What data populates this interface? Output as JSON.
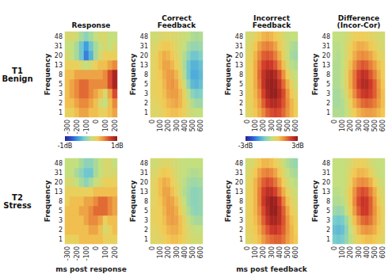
{
  "chart_data": [
    {
      "type": "heatmap",
      "title": "Response",
      "row_label": "T1\nBenign",
      "ylabel": "Frequency",
      "x": [
        -300,
        null,
        -200,
        null,
        -100,
        null,
        0,
        null,
        100,
        null,
        200
      ],
      "y": [
        1,
        2,
        3,
        5,
        8,
        13,
        20,
        31,
        48
      ],
      "color_range": [
        -1,
        1
      ],
      "colorbar_ticks": [
        {
          "value": -1,
          "label": "-1dB"
        },
        {
          "value": 1,
          "label": "1dB"
        }
      ],
      "values": [
        [
          0.2,
          0.2,
          0.3,
          0.4,
          0.4,
          0.3,
          0.3,
          0.2,
          0.2,
          0.3,
          0.4
        ],
        [
          0.3,
          0.3,
          0.4,
          0.5,
          0.5,
          0.4,
          0.3,
          0.1,
          0,
          0.3,
          0.5
        ],
        [
          0.3,
          0.4,
          0.5,
          0.6,
          0.6,
          0.5,
          0.4,
          0.3,
          0.1,
          0.4,
          0.7
        ],
        [
          0.3,
          0.4,
          0.5,
          0.6,
          0.6,
          0.5,
          0.5,
          0.5,
          0.5,
          0.7,
          0.9
        ],
        [
          0.3,
          0.3,
          0.4,
          0.4,
          0.4,
          0.4,
          0.4,
          0.4,
          0.5,
          0.7,
          0.9
        ],
        [
          0.2,
          0.2,
          0.2,
          0.1,
          0,
          0.1,
          0.2,
          0.3,
          0.3,
          0.4,
          0.5
        ],
        [
          0.1,
          0,
          -0.1,
          -0.3,
          -0.6,
          -0.4,
          -0.1,
          0.1,
          0.2,
          0.2,
          0.2
        ],
        [
          0,
          0,
          -0.1,
          -0.3,
          -0.5,
          -0.3,
          -0.1,
          0,
          0.1,
          0,
          0.1
        ],
        [
          0.1,
          0.1,
          0.05,
          -0.1,
          -0.2,
          -0.1,
          0,
          0.1,
          0.1,
          0,
          0
        ]
      ]
    },
    {
      "type": "heatmap",
      "title": "Correct\nFeedback",
      "ylabel": "Frequency",
      "x": [
        0,
        null,
        100,
        null,
        200,
        null,
        300,
        null,
        400,
        null,
        500,
        null,
        600
      ],
      "y": [
        1,
        2,
        3,
        5,
        8,
        13,
        20,
        31,
        48
      ],
      "color_range": [
        -3,
        3
      ],
      "values": [
        [
          0.4,
          0.4,
          0.5,
          0.6,
          0.8,
          0.9,
          0.9,
          0.8,
          0.6,
          0.3,
          0.1,
          0,
          0
        ],
        [
          0.4,
          0.5,
          0.6,
          0.8,
          1.0,
          1.1,
          1.2,
          1.0,
          0.6,
          0.2,
          -0.2,
          -0.4,
          -0.4
        ],
        [
          0.5,
          0.6,
          0.7,
          0.9,
          1.2,
          1.3,
          1.3,
          1.0,
          0.5,
          -0.1,
          -0.6,
          -0.8,
          -0.7
        ],
        [
          0.5,
          0.6,
          0.7,
          1.0,
          1.3,
          1.4,
          1.2,
          0.8,
          0.1,
          -0.6,
          -1.1,
          -1.2,
          -1.0
        ],
        [
          0.4,
          0.6,
          0.8,
          1.1,
          1.3,
          1.3,
          1.0,
          0.5,
          -0.2,
          -0.9,
          -1.3,
          -1.3,
          -1.1
        ],
        [
          0.4,
          0.6,
          0.9,
          1.2,
          1.2,
          1.0,
          0.7,
          0.3,
          -0.3,
          -0.9,
          -1.2,
          -1.2,
          -1.0
        ],
        [
          0.4,
          0.6,
          0.9,
          1.1,
          1.0,
          0.8,
          0.5,
          0.2,
          -0.2,
          -0.6,
          -0.9,
          -0.9,
          -0.7
        ],
        [
          0.3,
          0.4,
          0.6,
          0.8,
          0.8,
          0.6,
          0.4,
          0.2,
          0,
          -0.3,
          -0.5,
          -0.5,
          -0.4
        ],
        [
          0.2,
          0.2,
          0.3,
          0.4,
          0.4,
          0.4,
          0.3,
          0.2,
          0.1,
          0,
          -0.2,
          -0.3,
          -0.2
        ]
      ]
    },
    {
      "type": "heatmap",
      "title": "Incorrect\nFeedback",
      "ylabel": "Frequency",
      "x": [
        0,
        null,
        100,
        null,
        200,
        null,
        300,
        null,
        400,
        null,
        500,
        null,
        600
      ],
      "y": [
        1,
        2,
        3,
        5,
        8,
        13,
        20,
        31,
        48
      ],
      "color_range": [
        -3,
        3
      ],
      "colorbar_ticks": [
        {
          "value": -3,
          "label": "-3dB"
        },
        {
          "value": 3,
          "label": "3dB"
        }
      ],
      "values": [
        [
          0.4,
          0.5,
          0.8,
          1.1,
          1.5,
          1.9,
          2.1,
          2.2,
          2.1,
          1.8,
          1.4,
          1.0,
          0.7
        ],
        [
          0.5,
          0.6,
          0.9,
          1.3,
          1.9,
          2.4,
          2.6,
          2.6,
          2.4,
          2.0,
          1.5,
          1.0,
          0.6
        ],
        [
          0.5,
          0.7,
          1.0,
          1.5,
          2.2,
          2.7,
          2.9,
          2.9,
          2.6,
          2.1,
          1.4,
          0.8,
          0.4
        ],
        [
          0.5,
          0.7,
          1.1,
          1.7,
          2.4,
          2.8,
          2.9,
          2.8,
          2.4,
          1.8,
          1.1,
          0.5,
          0.2
        ],
        [
          0.5,
          0.7,
          1.1,
          1.8,
          2.4,
          2.7,
          2.8,
          2.6,
          2.1,
          1.4,
          0.7,
          0.2,
          0
        ],
        [
          0.5,
          0.7,
          1.1,
          1.7,
          2.2,
          2.4,
          2.3,
          2.0,
          1.5,
          0.9,
          0.3,
          -0.1,
          -0.2
        ],
        [
          0.4,
          0.6,
          1.0,
          1.5,
          1.9,
          2.0,
          1.9,
          1.6,
          1.1,
          0.6,
          0.1,
          -0.3,
          -0.4
        ],
        [
          0.3,
          0.5,
          0.8,
          1.2,
          1.5,
          1.6,
          1.5,
          1.2,
          0.8,
          0.4,
          0.1,
          -0.2,
          -0.3
        ],
        [
          0.2,
          0.3,
          0.5,
          0.8,
          1.0,
          1.1,
          1.0,
          0.8,
          0.6,
          0.3,
          0.1,
          0,
          0
        ]
      ]
    },
    {
      "type": "heatmap",
      "title": "Difference\n(Incor-Cor)",
      "ylabel": "Frequency",
      "x": [
        0,
        null,
        100,
        null,
        200,
        null,
        300,
        null,
        400,
        null,
        500,
        null,
        600
      ],
      "y": [
        1,
        2,
        3,
        5,
        8,
        13,
        20,
        31,
        48
      ],
      "color_range": [
        -3,
        3
      ],
      "values": [
        [
          -0.2,
          -0.2,
          -0.2,
          0,
          0.4,
          0.7,
          1.0,
          1.2,
          1.3,
          1.3,
          1.2,
          1.0,
          0.8
        ],
        [
          -0.3,
          -0.3,
          -0.2,
          0.1,
          0.6,
          1.1,
          1.5,
          1.8,
          1.9,
          1.8,
          1.6,
          1.3,
          0.9
        ],
        [
          -0.3,
          -0.3,
          -0.1,
          0.3,
          0.9,
          1.5,
          2.0,
          2.3,
          2.4,
          2.2,
          1.9,
          1.4,
          0.9
        ],
        [
          -0.2,
          -0.2,
          0,
          0.5,
          1.1,
          1.7,
          2.3,
          2.6,
          2.6,
          2.3,
          1.9,
          1.3,
          0.8
        ],
        [
          -0.2,
          -0.2,
          0,
          0.5,
          1.1,
          1.7,
          2.2,
          2.5,
          2.4,
          2.0,
          1.6,
          1.1,
          0.7
        ],
        [
          -0.2,
          -0.2,
          0,
          0.4,
          0.9,
          1.4,
          1.8,
          2.0,
          1.9,
          1.6,
          1.3,
          0.9,
          0.6
        ],
        [
          -0.1,
          -0.2,
          0,
          0.3,
          0.7,
          1.1,
          1.4,
          1.5,
          1.4,
          1.2,
          0.9,
          0.6,
          0.4
        ],
        [
          -0.1,
          -0.1,
          0,
          0.3,
          0.6,
          0.9,
          1.1,
          1.1,
          1.0,
          0.8,
          0.6,
          0.4,
          0.3
        ],
        [
          0,
          0,
          0,
          0.2,
          0.4,
          0.6,
          0.7,
          0.7,
          0.6,
          0.5,
          0.4,
          0.3,
          0.2
        ]
      ]
    },
    {
      "type": "heatmap",
      "row_label": "T2\nStress",
      "ylabel": "Frequency",
      "xlabel": "ms post response",
      "x": [
        -300,
        null,
        -200,
        null,
        -100,
        null,
        0,
        null,
        100,
        null,
        200
      ],
      "y": [
        1,
        2,
        3,
        5,
        8,
        13,
        20,
        31,
        48
      ],
      "color_range": [
        -1,
        1
      ],
      "values": [
        [
          0.2,
          0.2,
          0.2,
          0.3,
          0.3,
          0.3,
          0.3,
          0.3,
          0.2,
          0.2,
          0.2
        ],
        [
          0.3,
          0.3,
          0.3,
          0.3,
          0.3,
          0.4,
          0.4,
          0.3,
          0.1,
          0.2,
          0.3
        ],
        [
          0.3,
          0.3,
          0.3,
          0.3,
          0.4,
          0.5,
          0.5,
          0.4,
          0.2,
          0.3,
          0.3
        ],
        [
          0.3,
          0.3,
          0.3,
          0.4,
          0.4,
          0.5,
          0.6,
          0.6,
          0.6,
          0.5,
          0.4
        ],
        [
          0.2,
          0.3,
          0.3,
          0.3,
          0.4,
          0.4,
          0.5,
          0.6,
          0.6,
          0.5,
          0.4
        ],
        [
          0.2,
          0.2,
          0.2,
          0.2,
          0.2,
          0.2,
          0.3,
          0.3,
          0.3,
          0.3,
          0.3
        ],
        [
          0.1,
          0.1,
          0,
          -0.1,
          -0.2,
          -0.1,
          0,
          0.1,
          0.2,
          0.2,
          0.2
        ],
        [
          0,
          0,
          -0.1,
          -0.2,
          -0.3,
          -0.3,
          -0.1,
          0,
          0.1,
          0.1,
          0.1
        ],
        [
          0,
          0,
          0,
          -0.1,
          -0.2,
          -0.2,
          -0.1,
          0,
          0.1,
          0.1,
          0
        ]
      ]
    },
    {
      "type": "heatmap",
      "ylabel": "Frequency",
      "x": [
        0,
        null,
        100,
        null,
        200,
        null,
        300,
        null,
        400,
        null,
        500,
        null,
        600
      ],
      "y": [
        1,
        2,
        3,
        5,
        8,
        13,
        20,
        31,
        48
      ],
      "color_range": [
        -3,
        3
      ],
      "values": [
        [
          0.4,
          0.4,
          0.5,
          0.6,
          0.8,
          0.9,
          0.9,
          0.8,
          0.6,
          0.4,
          0.2,
          0.2,
          0.2
        ],
        [
          0.4,
          0.5,
          0.6,
          0.8,
          1.0,
          1.1,
          1.1,
          0.9,
          0.6,
          0.3,
          0.1,
          0,
          0
        ],
        [
          0.5,
          0.6,
          0.7,
          0.9,
          1.2,
          1.3,
          1.2,
          0.9,
          0.5,
          0.1,
          -0.2,
          -0.3,
          -0.3
        ],
        [
          0.5,
          0.6,
          0.7,
          1.0,
          1.3,
          1.3,
          1.1,
          0.7,
          0.2,
          -0.2,
          -0.5,
          -0.6,
          -0.5
        ],
        [
          0.4,
          0.6,
          0.8,
          1.1,
          1.3,
          1.2,
          0.9,
          0.4,
          0,
          -0.4,
          -0.6,
          -0.6,
          -0.5
        ],
        [
          0.4,
          0.6,
          0.9,
          1.2,
          1.2,
          0.9,
          0.6,
          0.2,
          -0.2,
          -0.4,
          -0.6,
          -0.6,
          -0.5
        ],
        [
          0.4,
          0.6,
          0.9,
          1.1,
          1.0,
          0.7,
          0.4,
          0.1,
          -0.1,
          -0.3,
          -0.4,
          -0.4,
          -0.3
        ],
        [
          0.3,
          0.4,
          0.6,
          0.8,
          0.7,
          0.5,
          0.3,
          0.1,
          0,
          -0.1,
          -0.2,
          -0.2,
          -0.1
        ],
        [
          0.2,
          0.2,
          0.3,
          0.4,
          0.4,
          0.3,
          0.2,
          0.1,
          0,
          0,
          0,
          0,
          0
        ]
      ]
    },
    {
      "type": "heatmap",
      "ylabel": "Frequency",
      "xlabel": "ms post feedback",
      "x": [
        0,
        null,
        100,
        null,
        200,
        null,
        300,
        null,
        400,
        null,
        500,
        null,
        600
      ],
      "y": [
        1,
        2,
        3,
        5,
        8,
        13,
        20,
        31,
        48
      ],
      "color_range": [
        -3,
        3
      ],
      "values": [
        [
          0.4,
          0.5,
          0.7,
          0.9,
          1.3,
          1.6,
          1.8,
          1.9,
          1.9,
          1.7,
          1.3,
          1.0,
          0.8
        ],
        [
          0.5,
          0.6,
          0.8,
          1.1,
          1.6,
          2.0,
          2.3,
          2.4,
          2.2,
          1.9,
          1.4,
          1.0,
          0.7
        ],
        [
          0.5,
          0.7,
          0.9,
          1.3,
          1.9,
          2.4,
          2.7,
          2.7,
          2.5,
          2.0,
          1.4,
          0.9,
          0.6
        ],
        [
          0.5,
          0.7,
          1.0,
          1.5,
          2.1,
          2.6,
          2.9,
          2.9,
          2.5,
          1.9,
          1.2,
          0.7,
          0.4
        ],
        [
          0.5,
          0.7,
          1.0,
          1.6,
          2.3,
          2.7,
          2.9,
          2.8,
          2.3,
          1.6,
          0.9,
          0.5,
          0.3
        ],
        [
          0.5,
          0.7,
          1.0,
          1.6,
          2.2,
          2.5,
          2.5,
          2.2,
          1.7,
          1.1,
          0.6,
          0.3,
          0.1
        ],
        [
          0.4,
          0.6,
          1.0,
          1.5,
          1.9,
          2.1,
          2.0,
          1.7,
          1.2,
          0.7,
          0.3,
          0,
          -0.1
        ],
        [
          0.3,
          0.5,
          0.8,
          1.2,
          1.5,
          1.6,
          1.5,
          1.2,
          0.8,
          0.4,
          0,
          -0.2,
          -0.3
        ],
        [
          0.2,
          0.3,
          0.5,
          0.8,
          1.0,
          1.0,
          0.9,
          0.7,
          0.4,
          0.1,
          -0.2,
          -0.4,
          -0.5
        ]
      ]
    },
    {
      "type": "heatmap",
      "ylabel": "Frequency",
      "x": [
        0,
        null,
        100,
        null,
        200,
        null,
        300,
        null,
        400,
        null,
        500,
        null,
        600
      ],
      "y": [
        1,
        2,
        3,
        5,
        8,
        13,
        20,
        31,
        48
      ],
      "color_range": [
        -3,
        3
      ],
      "values": [
        [
          -0.8,
          -0.9,
          -0.8,
          -0.5,
          -0.1,
          0.3,
          0.6,
          0.8,
          0.9,
          0.9,
          0.8,
          0.6,
          0.4
        ],
        [
          -1.0,
          -1.1,
          -1.0,
          -0.6,
          0,
          0.5,
          1.0,
          1.3,
          1.4,
          1.3,
          1.1,
          0.8,
          0.5
        ],
        [
          -0.8,
          -0.9,
          -0.8,
          -0.4,
          0.2,
          0.9,
          1.4,
          1.8,
          1.9,
          1.7,
          1.3,
          0.9,
          0.5
        ],
        [
          -0.4,
          -0.5,
          -0.4,
          0,
          0.6,
          1.3,
          1.9,
          2.3,
          2.3,
          1.9,
          1.4,
          0.9,
          0.5
        ],
        [
          -0.2,
          -0.2,
          -0.1,
          0.2,
          0.8,
          1.5,
          2.1,
          2.4,
          2.3,
          1.9,
          1.3,
          0.8,
          0.4
        ],
        [
          -0.1,
          -0.1,
          0,
          0.3,
          0.8,
          1.4,
          1.9,
          2.1,
          2.0,
          1.6,
          1.1,
          0.6,
          0.3
        ],
        [
          0,
          0,
          0,
          0.2,
          0.6,
          1.1,
          1.4,
          1.5,
          1.4,
          1.1,
          0.7,
          0.3,
          0.1
        ],
        [
          0,
          0,
          0,
          0.2,
          0.5,
          0.8,
          1.0,
          1.0,
          0.9,
          0.6,
          0.3,
          0.1,
          0
        ],
        [
          0,
          0,
          0,
          0.1,
          0.3,
          0.5,
          0.6,
          0.6,
          0.5,
          0.3,
          0.1,
          0,
          0
        ]
      ]
    }
  ]
}
